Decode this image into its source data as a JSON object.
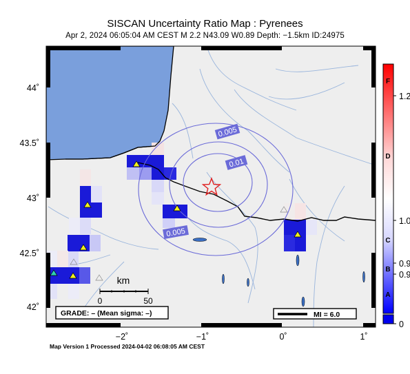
{
  "title": "SISCAN Uncertainty Ratio Map : Pyrenees",
  "subtitle": "Apr  2, 2024 06:05:04 AM CEST   M 2.2    N43.09 W0.89    Depth: −1.5km    ID:24975",
  "footer": "Map Version 1 Processed 2024-04-02 06:08:05 AM CEST",
  "axes": {
    "lat_ticks": [
      "44˚",
      "43.5˚",
      "43˚",
      "42.5˚",
      "42˚"
    ],
    "lon_ticks": [
      "−2˚",
      "−1˚",
      "0˚",
      "1˚"
    ]
  },
  "contours": {
    "inner": "0.01",
    "middle": "0.005",
    "outer": "0.005"
  },
  "scale_bar": {
    "unit": "km",
    "min": "0",
    "max": "50"
  },
  "grade_box": "GRADE: – (Mean sigma: –)",
  "mi_legend": "MI = 6.0",
  "colorbar": {
    "grades": [
      "F",
      "D",
      "C",
      "B",
      "A"
    ],
    "values": [
      "1.2",
      "1.0",
      "0.9",
      "0.9",
      "0"
    ]
  },
  "colors": {
    "sea": "#7a9fdc",
    "land": "#eeeeee",
    "river": "#8fb0d6",
    "cell_dark": "#1a1ad8",
    "epicenter": "#e02020",
    "station": "#f0f020"
  }
}
